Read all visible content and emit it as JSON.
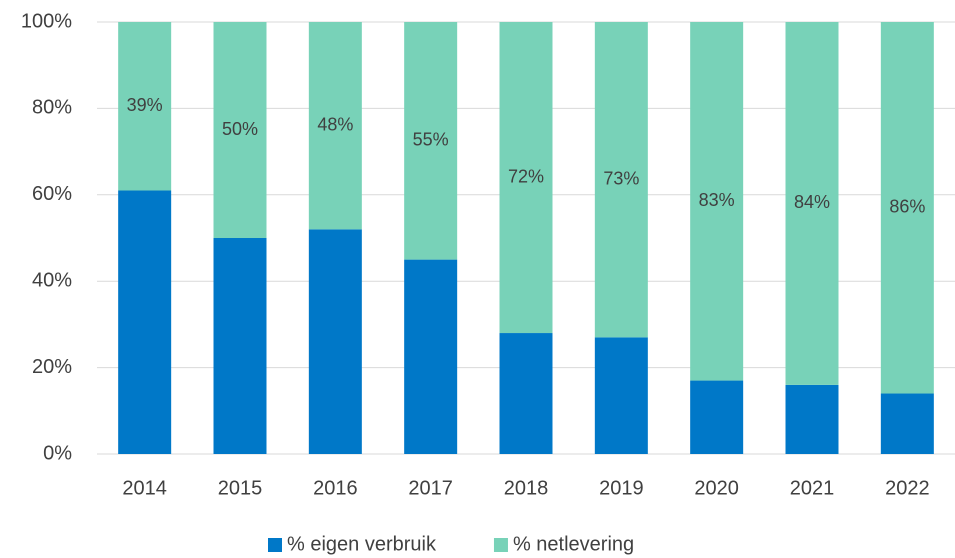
{
  "chart_data": {
    "type": "stacked_bar",
    "categories": [
      "2014",
      "2015",
      "2016",
      "2017",
      "2018",
      "2019",
      "2020",
      "2021",
      "2022"
    ],
    "series": [
      {
        "name": "% eigen verbruik",
        "color": "#0078c8",
        "values": [
          61,
          50,
          52,
          45,
          28,
          27,
          17,
          16,
          14
        ]
      },
      {
        "name": "% netlevering",
        "color": "#78d2b8",
        "values": [
          39,
          50,
          48,
          55,
          72,
          73,
          83,
          84,
          86
        ],
        "value_labels": [
          "39%",
          "50%",
          "48%",
          "55%",
          "72%",
          "73%",
          "83%",
          "84%",
          "86%"
        ]
      }
    ],
    "ylim": [
      0,
      100
    ],
    "yticks": [
      {
        "value": 0,
        "label": "0%"
      },
      {
        "value": 20,
        "label": "20%"
      },
      {
        "value": 40,
        "label": "40%"
      },
      {
        "value": 60,
        "label": "60%"
      },
      {
        "value": 80,
        "label": "80%"
      },
      {
        "value": 100,
        "label": "100%"
      }
    ],
    "grid": true,
    "legend": "bottom"
  }
}
